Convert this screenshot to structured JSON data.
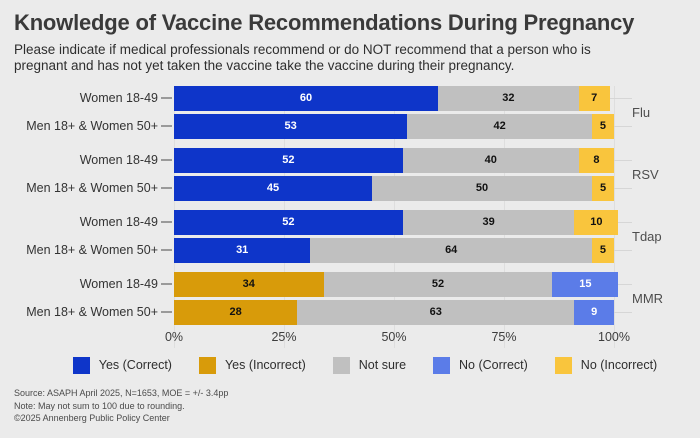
{
  "header": {
    "title": "Knowledge of Vaccine Recommendations During Pregnancy",
    "subtitle": "Please indicate if medical professionals recommend or do NOT recommend that a person who is pregnant and has not yet taken the vaccine take the vaccine during their pregnancy."
  },
  "footer": {
    "source": "Source: ASAPH April 2025, N=1653, MOE = +/- 3.4pp",
    "note": "Note: May not sum to 100 due to rounding.",
    "copyright": "©2025 Annenberg Public Policy Center"
  },
  "colors": {
    "background": "#ebebeb",
    "yes_correct": "#0e35c9",
    "yes_incorrect": "#d89b0a",
    "not_sure": "#c0c0c0",
    "no_correct": "#5b7ce8",
    "no_incorrect": "#f9c53d"
  },
  "chart_data": {
    "type": "bar",
    "stacked": true,
    "orientation": "horizontal",
    "title": "Knowledge of Vaccine Recommendations During Pregnancy",
    "xlabel": "",
    "ylabel": "",
    "xlim": [
      0,
      100
    ],
    "x_ticks": [
      "0%",
      "25%",
      "50%",
      "75%",
      "100%"
    ],
    "grid": true,
    "legend_position": "bottom",
    "legend": [
      {
        "label": "Yes (Correct)",
        "color": "#0e35c9"
      },
      {
        "label": "Yes (Incorrect)",
        "color": "#d89b0a"
      },
      {
        "label": "Not sure",
        "color": "#c0c0c0"
      },
      {
        "label": "No (Correct)",
        "color": "#5b7ce8"
      },
      {
        "label": "No (Incorrect)",
        "color": "#f9c53d"
      }
    ],
    "groups": [
      {
        "label": "Flu",
        "rows": [
          {
            "label": "Women 18-49",
            "segments": [
              {
                "key": "Yes (Correct)",
                "value": 60
              },
              {
                "key": "Not sure",
                "value": 32
              },
              {
                "key": "No (Incorrect)",
                "value": 7
              }
            ]
          },
          {
            "label": "Men 18+ & Women 50+",
            "segments": [
              {
                "key": "Yes (Correct)",
                "value": 53
              },
              {
                "key": "Not sure",
                "value": 42
              },
              {
                "key": "No (Incorrect)",
                "value": 5
              }
            ]
          }
        ]
      },
      {
        "label": "RSV",
        "rows": [
          {
            "label": "Women 18-49",
            "segments": [
              {
                "key": "Yes (Correct)",
                "value": 52
              },
              {
                "key": "Not sure",
                "value": 40
              },
              {
                "key": "No (Incorrect)",
                "value": 8
              }
            ]
          },
          {
            "label": "Men 18+ & Women 50+",
            "segments": [
              {
                "key": "Yes (Correct)",
                "value": 45
              },
              {
                "key": "Not sure",
                "value": 50
              },
              {
                "key": "No (Incorrect)",
                "value": 5
              }
            ]
          }
        ]
      },
      {
        "label": "Tdap",
        "rows": [
          {
            "label": "Women 18-49",
            "segments": [
              {
                "key": "Yes (Correct)",
                "value": 52
              },
              {
                "key": "Not sure",
                "value": 39
              },
              {
                "key": "No (Incorrect)",
                "value": 10
              }
            ]
          },
          {
            "label": "Men 18+ & Women 50+",
            "segments": [
              {
                "key": "Yes (Correct)",
                "value": 31
              },
              {
                "key": "Not sure",
                "value": 64
              },
              {
                "key": "No (Incorrect)",
                "value": 5
              }
            ]
          }
        ]
      },
      {
        "label": "MMR",
        "rows": [
          {
            "label": "Women 18-49",
            "segments": [
              {
                "key": "Yes (Incorrect)",
                "value": 34
              },
              {
                "key": "Not sure",
                "value": 52
              },
              {
                "key": "No (Correct)",
                "value": 15
              }
            ]
          },
          {
            "label": "Men 18+ & Women 50+",
            "segments": [
              {
                "key": "Yes (Incorrect)",
                "value": 28
              },
              {
                "key": "Not sure",
                "value": 63
              },
              {
                "key": "No (Correct)",
                "value": 9
              }
            ]
          }
        ]
      }
    ]
  }
}
